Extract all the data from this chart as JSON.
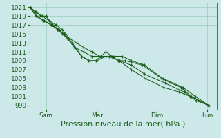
{
  "background_color": "#cce8e8",
  "grid_color": "#99ccbb",
  "line_color": "#1a5c1a",
  "marker_color": "#1a5c1a",
  "xlabel": "Pression niveau de la mer( hPa )",
  "ylim": [
    998,
    1022
  ],
  "yticks": [
    999,
    1001,
    1003,
    1005,
    1007,
    1009,
    1011,
    1013,
    1015,
    1017,
    1019,
    1021
  ],
  "xtick_labels": [
    "Sam",
    "Mar",
    "Dim",
    "Lun"
  ],
  "xtick_positions": [
    0.08,
    0.33,
    0.625,
    0.875
  ],
  "series_x": [
    [
      0.0,
      0.025,
      0.055,
      0.08,
      0.11,
      0.135,
      0.16,
      0.185,
      0.22,
      0.255,
      0.29,
      0.325,
      0.375,
      0.405,
      0.435,
      0.47,
      0.555,
      0.65,
      0.695,
      0.745,
      0.795,
      0.88
    ],
    [
      0.0,
      0.03,
      0.065,
      0.105,
      0.14,
      0.17,
      0.21,
      0.255,
      0.295,
      0.33,
      0.375,
      0.415,
      0.455,
      0.5,
      0.565,
      0.655,
      0.755,
      0.815,
      0.88
    ],
    [
      0.0,
      0.035,
      0.07,
      0.11,
      0.145,
      0.185,
      0.22,
      0.265,
      0.305,
      0.35,
      0.395,
      0.44,
      0.5,
      0.565,
      0.665,
      0.76,
      0.82,
      0.88
    ],
    [
      0.0,
      0.03,
      0.06,
      0.095,
      0.13,
      0.16,
      0.195,
      0.23,
      0.265,
      0.305,
      0.345,
      0.39,
      0.44,
      0.5,
      0.57,
      0.66,
      0.735,
      0.79,
      0.88
    ]
  ],
  "series_y": [
    [
      1021,
      1020,
      1019,
      1019,
      1017,
      1016,
      1015,
      1014,
      1012,
      1010,
      1009,
      1009,
      1011,
      1010,
      1009,
      1009,
      1008,
      1005,
      1004,
      1003,
      1001,
      999
    ],
    [
      1021,
      1019,
      1018,
      1017,
      1016,
      1015,
      1013,
      1010,
      1009,
      1009,
      1010,
      1010,
      1010,
      1009,
      1008,
      1005,
      1003,
      1001,
      999
    ],
    [
      1021,
      1019,
      1018,
      1017,
      1016,
      1014,
      1012,
      1011,
      1010,
      1010,
      1010,
      1009,
      1008,
      1006,
      1004,
      1002,
      1000,
      999
    ],
    [
      1021,
      1020,
      1019,
      1018,
      1017,
      1016,
      1014,
      1013,
      1012,
      1011,
      1010,
      1010,
      1009,
      1007,
      1005,
      1003,
      1002,
      1001,
      999
    ]
  ],
  "xlabel_fontsize": 8,
  "tick_fontsize": 6.5,
  "linewidth": 0.75,
  "markersize": 2.8
}
